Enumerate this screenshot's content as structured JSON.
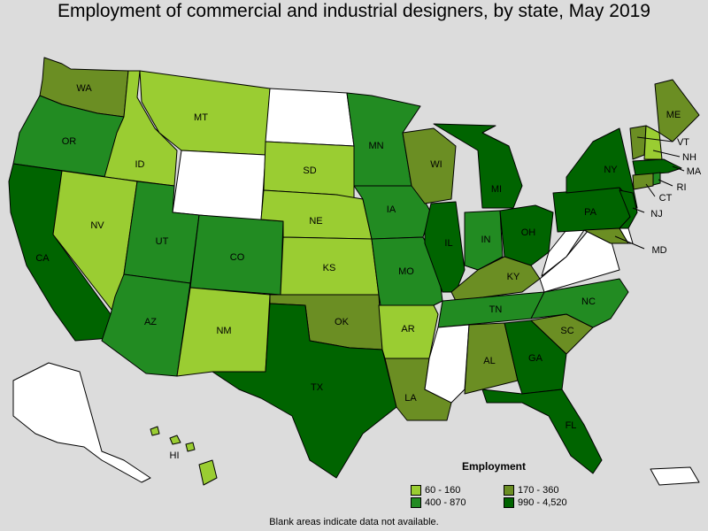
{
  "title": "Employment of commercial and industrial designers, by state, May 2019",
  "legend": {
    "title": "Employment",
    "items": [
      {
        "label": "60 - 160",
        "color": "#9acd32"
      },
      {
        "label": "170 - 360",
        "color": "#6b8e23"
      },
      {
        "label": "400 - 870",
        "color": "#228b22"
      },
      {
        "label": "990 - 4,520",
        "color": "#006400"
      }
    ]
  },
  "footnote": "Blank areas indicate data not available.",
  "colors": {
    "no_data": "#ffffff",
    "c1": "#9acd32",
    "c2": "#6b8e23",
    "c3": "#228b22",
    "c4": "#006400",
    "background": "#dcdcdc"
  },
  "states": {
    "WA": "WA",
    "OR": "OR",
    "CA": "CA",
    "ID": "ID",
    "NV": "NV",
    "MT": "MT",
    "UT": "UT",
    "AZ": "AZ",
    "CO": "CO",
    "NM": "NM",
    "SD": "SD",
    "NE": "NE",
    "KS": "KS",
    "OK": "OK",
    "TX": "TX",
    "MN": "MN",
    "IA": "IA",
    "MO": "MO",
    "AR": "AR",
    "LA": "LA",
    "WI": "WI",
    "IL": "IL",
    "MI": "MI",
    "IN": "IN",
    "OH": "OH",
    "KY": "KY",
    "TN": "TN",
    "AL": "AL",
    "GA": "GA",
    "FL": "FL",
    "SC": "SC",
    "NC": "NC",
    "PA": "PA",
    "NY": "NY",
    "ME": "ME",
    "VT": "VT",
    "NH": "NH",
    "MA": "MA",
    "RI": "RI",
    "CT": "CT",
    "NJ": "NJ",
    "MD": "MD",
    "HI": "HI"
  }
}
